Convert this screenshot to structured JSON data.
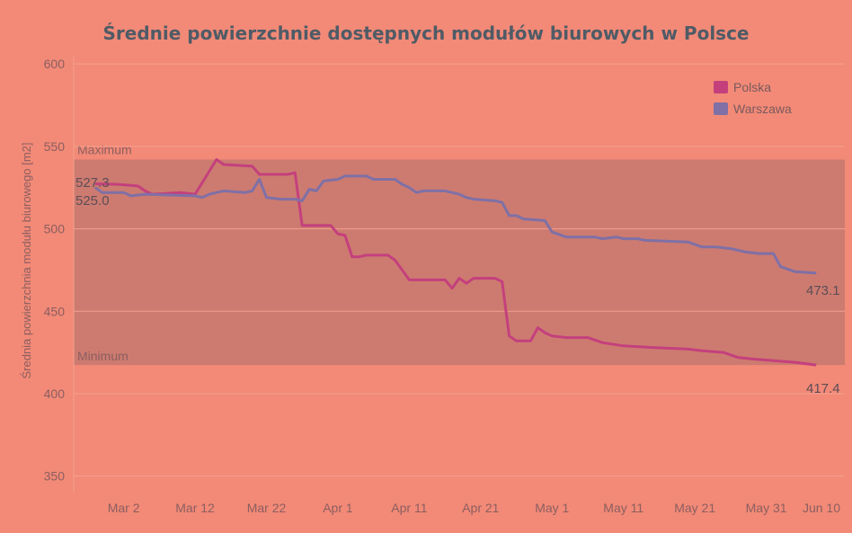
{
  "colors": {
    "background": "#f28a77",
    "band": "#cd7b70",
    "grid": "#f4a08f",
    "polska": "#c4407d",
    "warszawa": "#7f70a6"
  },
  "chart_data": {
    "type": "line",
    "title": "Średnie powierzchnie dostępnych modułów biurowych w Polsce",
    "xlabel": "",
    "ylabel": "Średnia powierzchnia modułu biurowego [m2]",
    "ylim": [
      340,
      605
    ],
    "xlim": [
      "2020-02-24",
      "2020-06-11"
    ],
    "y_ticks": [
      350,
      400,
      450,
      500,
      550,
      600
    ],
    "x_ticks": [
      {
        "date": "2020-03-02",
        "label": "Mar 2"
      },
      {
        "date": "2020-03-12",
        "label": "Mar 12"
      },
      {
        "date": "2020-03-22",
        "label": "Mar 22"
      },
      {
        "date": "2020-04-01",
        "label": "Apr 1"
      },
      {
        "date": "2020-04-11",
        "label": "Apr 11"
      },
      {
        "date": "2020-04-21",
        "label": "Apr 21"
      },
      {
        "date": "2020-05-01",
        "label": "May 1"
      },
      {
        "date": "2020-05-11",
        "label": "May 11"
      },
      {
        "date": "2020-05-21",
        "label": "May 21"
      },
      {
        "date": "2020-05-31",
        "label": "May 31"
      },
      {
        "date": "2020-06-10",
        "label": "Jun 10"
      }
    ],
    "grid": true,
    "legend_position": "top-right",
    "bands": [
      {
        "label": "Maximum",
        "value": 542
      },
      {
        "label": "Minimum",
        "value": 417.4
      }
    ],
    "series": [
      {
        "name": "Polska",
        "color": "#c4407d",
        "end_label": "417.4",
        "start_label": "527.3",
        "points": [
          [
            "2020-02-27",
            527.3
          ],
          [
            "2020-03-01",
            527
          ],
          [
            "2020-03-04",
            526
          ],
          [
            "2020-03-05",
            523
          ],
          [
            "2020-03-06",
            521
          ],
          [
            "2020-03-10",
            522
          ],
          [
            "2020-03-12",
            521
          ],
          [
            "2020-03-14",
            535
          ],
          [
            "2020-03-15",
            542
          ],
          [
            "2020-03-16",
            539
          ],
          [
            "2020-03-20",
            538
          ],
          [
            "2020-03-21",
            533
          ],
          [
            "2020-03-25",
            533
          ],
          [
            "2020-03-26",
            534
          ],
          [
            "2020-03-27",
            502
          ],
          [
            "2020-03-31",
            502
          ],
          [
            "2020-04-01",
            497
          ],
          [
            "2020-04-02",
            496
          ],
          [
            "2020-04-03",
            483
          ],
          [
            "2020-04-04",
            483
          ],
          [
            "2020-04-05",
            484
          ],
          [
            "2020-04-08",
            484
          ],
          [
            "2020-04-09",
            481
          ],
          [
            "2020-04-11",
            469
          ],
          [
            "2020-04-16",
            469
          ],
          [
            "2020-04-17",
            464
          ],
          [
            "2020-04-18",
            470
          ],
          [
            "2020-04-19",
            467
          ],
          [
            "2020-04-20",
            470
          ],
          [
            "2020-04-23",
            470
          ],
          [
            "2020-04-24",
            468
          ],
          [
            "2020-04-25",
            435
          ],
          [
            "2020-04-26",
            432
          ],
          [
            "2020-04-28",
            432
          ],
          [
            "2020-04-29",
            440
          ],
          [
            "2020-04-30",
            437
          ],
          [
            "2020-05-01",
            435
          ],
          [
            "2020-05-03",
            434
          ],
          [
            "2020-05-06",
            434
          ],
          [
            "2020-05-08",
            431
          ],
          [
            "2020-05-11",
            429
          ],
          [
            "2020-05-15",
            428
          ],
          [
            "2020-05-20",
            427
          ],
          [
            "2020-05-22",
            426
          ],
          [
            "2020-05-25",
            425
          ],
          [
            "2020-05-27",
            422
          ],
          [
            "2020-05-29",
            421
          ],
          [
            "2020-06-01",
            420
          ],
          [
            "2020-06-04",
            419
          ],
          [
            "2020-06-07",
            417.4
          ]
        ]
      },
      {
        "name": "Warszawa",
        "color": "#7f70a6",
        "end_label": "473.1",
        "start_label": "525.0",
        "points": [
          [
            "2020-02-27",
            525
          ],
          [
            "2020-02-28",
            522
          ],
          [
            "2020-03-02",
            522
          ],
          [
            "2020-03-03",
            520
          ],
          [
            "2020-03-05",
            521
          ],
          [
            "2020-03-12",
            520
          ],
          [
            "2020-03-13",
            519
          ],
          [
            "2020-03-14",
            521
          ],
          [
            "2020-03-16",
            523
          ],
          [
            "2020-03-19",
            522
          ],
          [
            "2020-03-20",
            523
          ],
          [
            "2020-03-21",
            530
          ],
          [
            "2020-03-22",
            519
          ],
          [
            "2020-03-24",
            518
          ],
          [
            "2020-03-26",
            518
          ],
          [
            "2020-03-27",
            517
          ],
          [
            "2020-03-28",
            524
          ],
          [
            "2020-03-29",
            523
          ],
          [
            "2020-03-30",
            529
          ],
          [
            "2020-04-01",
            530
          ],
          [
            "2020-04-02",
            532
          ],
          [
            "2020-04-05",
            532
          ],
          [
            "2020-04-06",
            530
          ],
          [
            "2020-04-09",
            530
          ],
          [
            "2020-04-10",
            527
          ],
          [
            "2020-04-11",
            525
          ],
          [
            "2020-04-12",
            522
          ],
          [
            "2020-04-13",
            523
          ],
          [
            "2020-04-16",
            523
          ],
          [
            "2020-04-18",
            521
          ],
          [
            "2020-04-19",
            519
          ],
          [
            "2020-04-20",
            518
          ],
          [
            "2020-04-23",
            517
          ],
          [
            "2020-04-24",
            516
          ],
          [
            "2020-04-25",
            508
          ],
          [
            "2020-04-26",
            508
          ],
          [
            "2020-04-27",
            506
          ],
          [
            "2020-04-30",
            505
          ],
          [
            "2020-05-01",
            498
          ],
          [
            "2020-05-03",
            495
          ],
          [
            "2020-05-07",
            495
          ],
          [
            "2020-05-08",
            494
          ],
          [
            "2020-05-10",
            495
          ],
          [
            "2020-05-11",
            494
          ],
          [
            "2020-05-13",
            494
          ],
          [
            "2020-05-14",
            493
          ],
          [
            "2020-05-20",
            492
          ],
          [
            "2020-05-22",
            489
          ],
          [
            "2020-05-24",
            489
          ],
          [
            "2020-05-26",
            488
          ],
          [
            "2020-05-28",
            486
          ],
          [
            "2020-05-30",
            485
          ],
          [
            "2020-06-01",
            485
          ],
          [
            "2020-06-02",
            477
          ],
          [
            "2020-06-04",
            474
          ],
          [
            "2020-06-07",
            473.1
          ]
        ]
      }
    ]
  }
}
